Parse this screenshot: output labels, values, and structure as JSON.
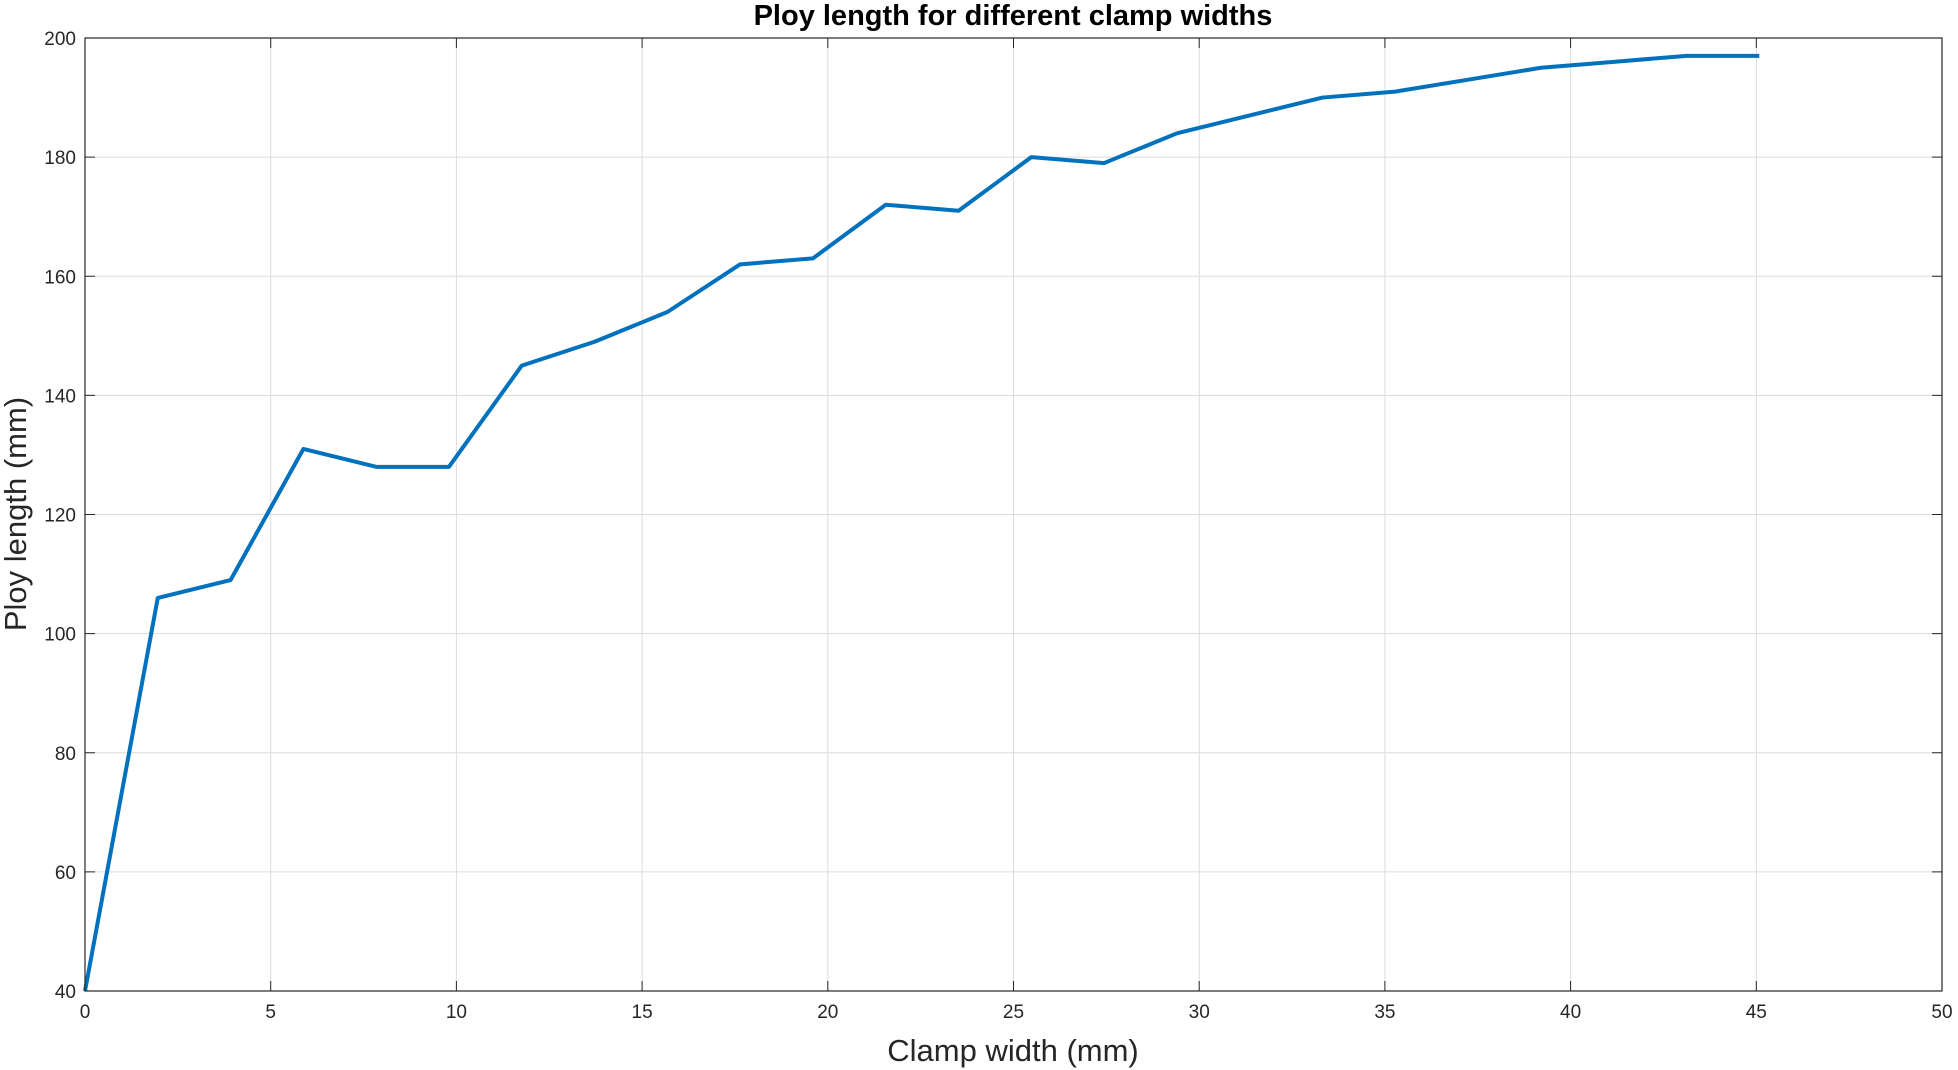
{
  "chart_data": {
    "type": "line",
    "title": "Ploy length for different clamp widths",
    "xlabel": "Clamp width (mm)",
    "ylabel": "Ploy length (mm)",
    "xlim": [
      0,
      50
    ],
    "ylim": [
      40,
      200
    ],
    "x_ticks": [
      "0",
      "5",
      "10",
      "15",
      "20",
      "25",
      "30",
      "35",
      "40",
      "45",
      "50"
    ],
    "y_ticks": [
      "40",
      "60",
      "80",
      "100",
      "120",
      "140",
      "160",
      "180",
      "200"
    ],
    "grid": true,
    "line_color": "#0072BD",
    "series": [
      {
        "x": [
          0,
          1.96,
          3.92,
          5.88,
          7.84,
          9.8,
          11.76,
          13.72,
          15.68,
          17.64,
          19.6,
          21.56,
          23.52,
          25.48,
          27.44,
          29.4,
          31.36,
          33.32,
          35.28,
          37.24,
          39.2,
          41.16,
          43.12,
          45.08
        ],
        "y": [
          40,
          106,
          109,
          131,
          128,
          128,
          145,
          149,
          154,
          162,
          163,
          172,
          171,
          180,
          179,
          184,
          187,
          190,
          191,
          193,
          195,
          196,
          197,
          197
        ]
      }
    ]
  }
}
